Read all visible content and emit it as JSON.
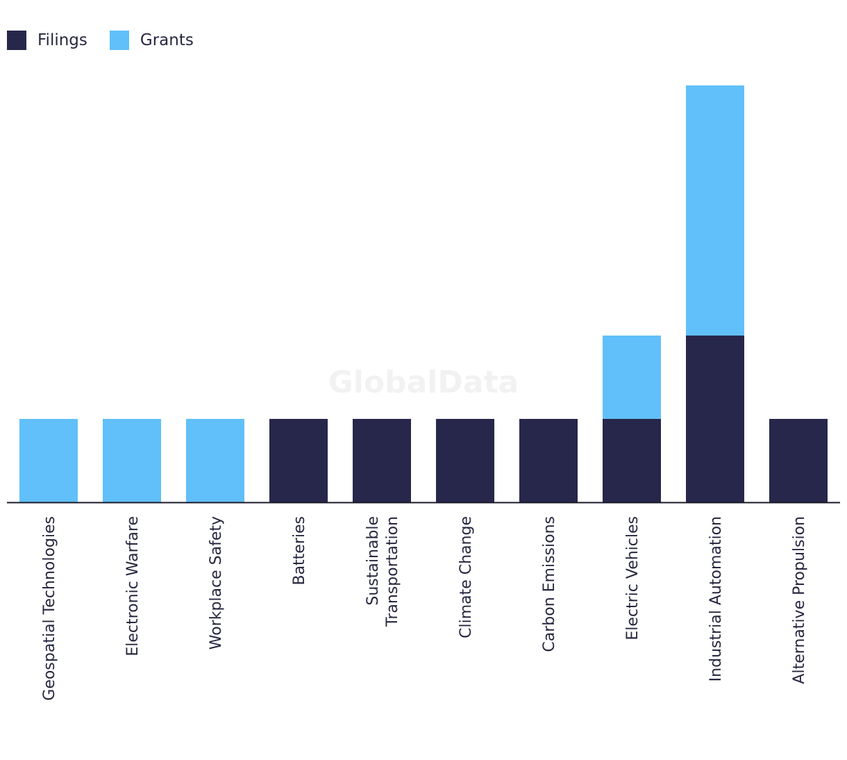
{
  "chart_data": {
    "type": "bar",
    "stacked": true,
    "title": "",
    "xlabel": "",
    "ylabel": "",
    "ylim": [
      0,
      5
    ],
    "grid": false,
    "legend_position": "top-left",
    "watermark": "GlobalData",
    "colors": {
      "Filings": "#26274a",
      "Grants": "#61c0f9",
      "axis": "#1a1a2a"
    },
    "categories": [
      "Geospatial Technologies",
      "Electronic Warfare",
      "Workplace Safety",
      "Batteries",
      "Sustainable Transportation",
      "Climate Change",
      "Carbon Emissions",
      "Electric Vehicles",
      "Industrial Automation",
      "Alternative Propulsion"
    ],
    "category_lines": [
      [
        "Geospatial Technologies"
      ],
      [
        "Electronic Warfare"
      ],
      [
        "Workplace Safety"
      ],
      [
        "Batteries"
      ],
      [
        "Sustainable",
        "Transportation"
      ],
      [
        "Climate Change"
      ],
      [
        "Carbon Emissions"
      ],
      [
        "Electric Vehicles"
      ],
      [
        "Industrial Automation"
      ],
      [
        "Alternative Propulsion"
      ]
    ],
    "series": [
      {
        "name": "Filings",
        "values": [
          0,
          0,
          0,
          1,
          1,
          1,
          1,
          1,
          2,
          1
        ]
      },
      {
        "name": "Grants",
        "values": [
          1,
          1,
          1,
          0,
          0,
          0,
          0,
          1,
          3,
          0
        ]
      }
    ]
  }
}
